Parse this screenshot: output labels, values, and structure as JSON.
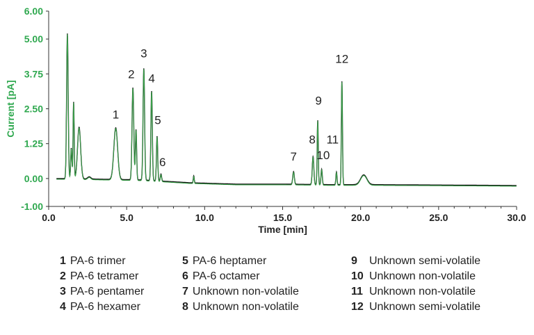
{
  "chart_data": {
    "type": "line",
    "title": "",
    "xlabel": "Time [min]",
    "ylabel": "Current [pA]",
    "xlim": [
      0,
      30
    ],
    "ylim": [
      -1,
      6
    ],
    "x_ticks": [
      "0.0",
      "5.0",
      "10.0",
      "15.0",
      "20.0",
      "25.0",
      "30.0"
    ],
    "y_ticks": [
      "-1.00",
      "0.00",
      "1.25",
      "2.50",
      "3.75",
      "5.00",
      "6.00"
    ],
    "x_tick_values": [
      0,
      5,
      10,
      15,
      20,
      25,
      30
    ],
    "y_tick_values": [
      -1,
      0,
      1.25,
      2.5,
      3.75,
      5,
      6
    ],
    "grid": false,
    "colors": {
      "trace": "#3aa04a",
      "black_trace": "#111111",
      "axis_text": "#2fa84f",
      "axis": "#333333"
    },
    "series": [
      {
        "baseline": [
          [
            0.5,
            0.0
          ],
          [
            3,
            -0.02
          ],
          [
            6,
            -0.05
          ],
          [
            9,
            -0.15
          ],
          [
            12,
            -0.2
          ],
          [
            15,
            -0.2
          ],
          [
            18,
            -0.22
          ],
          [
            21,
            -0.22
          ],
          [
            24,
            -0.23
          ],
          [
            30,
            -0.25
          ]
        ],
        "peaks": [
          {
            "x": 1.2,
            "height": 5.2,
            "width": 0.05
          },
          {
            "x": 1.45,
            "height": 1.1,
            "width": 0.04
          },
          {
            "x": 1.6,
            "height": 2.75,
            "width": 0.035
          },
          {
            "x": 1.95,
            "height": 1.85,
            "width": 0.1
          },
          {
            "x": 2.6,
            "height": 0.08,
            "width": 0.1
          },
          {
            "x": 4.3,
            "height": 1.85,
            "width": 0.12
          },
          {
            "x": 5.4,
            "height": 3.3,
            "width": 0.055
          },
          {
            "x": 5.6,
            "height": 1.8,
            "width": 0.04
          },
          {
            "x": 6.1,
            "height": 4.0,
            "width": 0.05
          },
          {
            "x": 6.6,
            "height": 3.2,
            "width": 0.045
          },
          {
            "x": 6.95,
            "height": 1.6,
            "width": 0.04
          },
          {
            "x": 7.2,
            "height": 0.25,
            "width": 0.04
          },
          {
            "x": 9.3,
            "height": 0.25,
            "width": 0.03
          },
          {
            "x": 15.7,
            "height": 0.45,
            "width": 0.05
          },
          {
            "x": 16.95,
            "height": 1.0,
            "width": 0.05
          },
          {
            "x": 17.25,
            "height": 2.3,
            "width": 0.035
          },
          {
            "x": 17.5,
            "height": 0.55,
            "width": 0.04
          },
          {
            "x": 18.45,
            "height": 0.45,
            "width": 0.035
          },
          {
            "x": 18.8,
            "height": 3.7,
            "width": 0.035
          },
          {
            "x": 20.2,
            "height": 0.35,
            "width": 0.2
          }
        ]
      }
    ],
    "annotations": [
      {
        "text": "1",
        "x": 4.3,
        "y": 1.95
      },
      {
        "text": "2",
        "x": 5.3,
        "y": 3.4
      },
      {
        "text": "3",
        "x": 6.1,
        "y": 4.15
      },
      {
        "text": "4",
        "x": 6.6,
        "y": 3.25
      },
      {
        "text": "5",
        "x": 7.0,
        "y": 1.75
      },
      {
        "text": "6",
        "x": 7.3,
        "y": 0.25
      },
      {
        "text": "7",
        "x": 15.7,
        "y": 0.45
      },
      {
        "text": "8",
        "x": 16.9,
        "y": 1.05
      },
      {
        "text": "9",
        "x": 17.3,
        "y": 2.45
      },
      {
        "text": "10",
        "x": 17.6,
        "y": 0.5
      },
      {
        "text": "11",
        "x": 18.2,
        "y": 1.05
      },
      {
        "text": "12",
        "x": 18.8,
        "y": 3.95
      }
    ]
  },
  "legend": {
    "col1": [
      {
        "num": "1",
        "label": "PA-6 trimer"
      },
      {
        "num": "2",
        "label": "PA-6 tetramer"
      },
      {
        "num": "3",
        "label": "PA-6 pentamer"
      },
      {
        "num": "4",
        "label": "PA-6 hexamer"
      }
    ],
    "col2": [
      {
        "num": "5",
        "label": "PA-6 heptamer"
      },
      {
        "num": "6",
        "label": "PA-6 octamer"
      },
      {
        "num": "7",
        "label": "Unknown non-volatile"
      },
      {
        "num": "8",
        "label": "Unknown non-volatile"
      }
    ],
    "col3": [
      {
        "num": "9",
        "label": "Unknown semi-volatile"
      },
      {
        "num": "10",
        "label": "Unknown non-volatile"
      },
      {
        "num": "11",
        "label": "Unknown non-volatile"
      },
      {
        "num": "12",
        "label": "Unknown semi-volatile"
      }
    ]
  }
}
